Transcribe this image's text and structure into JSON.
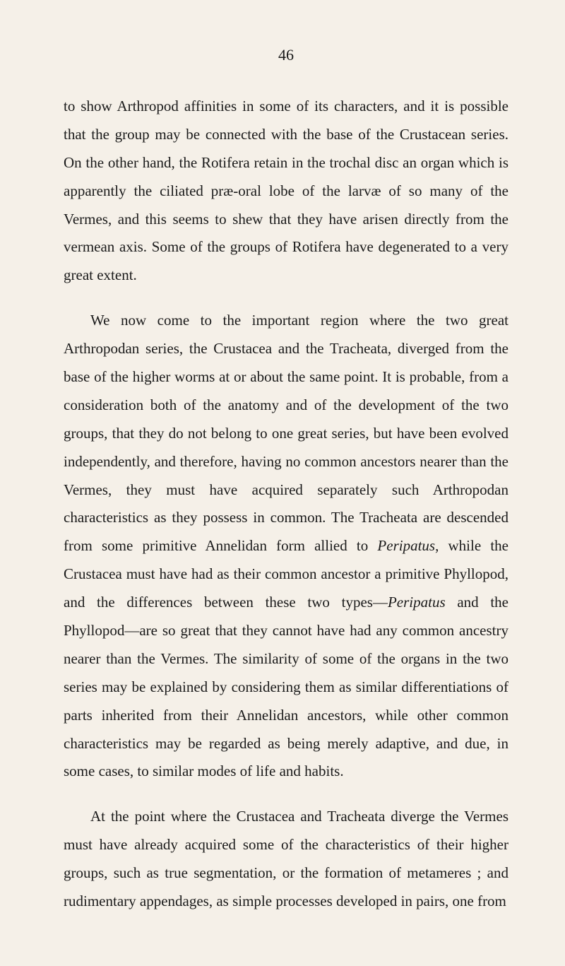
{
  "page_number": "46",
  "paragraphs": [
    {
      "text": "to show Arthropod affinities in some of its characters, and it is possible that the group may be connected with the base of the Crustacean series. On the other hand, the Rotifera retain in the trochal disc an organ which is apparently the ciliated præ-oral lobe of the larvæ of so many of the Vermes, and this seems to shew that they have arisen directly from the vermean axis. Some of the groups of Rotifera have degenerated to a very great extent.",
      "indent": false
    },
    {
      "segments": [
        {
          "text": "We now come to the important region where the two great Arthropodan series, the Crustacea and the Tracheata, diverged from the base of the higher worms at or about the same point. It is probable, from a consideration both of the anatomy and of the development of the two groups, that they do not belong to one great series, but have been evolved independently, and therefore, having no common ancestors nearer than the Vermes, they must have acquired separately such Arthropodan characteristics as they possess in common. The Tracheata are descended from some primitive Annelidan form allied to ",
          "italic": false
        },
        {
          "text": "Peripatus",
          "italic": true
        },
        {
          "text": ", while the Crustacea must have had as their common ancestor a primitive Phyllopod, and the differences between these two types—",
          "italic": false
        },
        {
          "text": "Peripatus",
          "italic": true
        },
        {
          "text": " and the Phyllopod—are so great that they cannot have had any common ancestry nearer than the Vermes. The similarity of some of the organs in the two series may be explained by considering them as similar differentiations of parts inherited from their Annelidan ancestors, while other common characteristics may be regarded as being merely adaptive, and due, in some cases, to similar modes of life and habits.",
          "italic": false
        }
      ],
      "indent": true
    },
    {
      "text": "At the point where the Crustacea and Tracheata diverge the Vermes must have already acquired some of the characteristics of their higher groups, such as true segmentation, or the formation of metameres ; and rudimentary appendages, as simple processes developed in pairs, one from",
      "indent": true
    }
  ]
}
